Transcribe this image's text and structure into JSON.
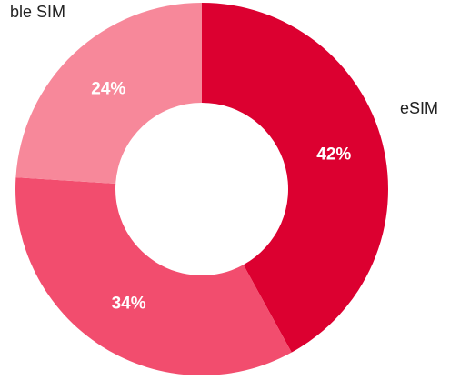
{
  "chart_data": {
    "type": "donut",
    "categories": [
      "eSIM",
      null,
      "ble SIM"
    ],
    "values": [
      42,
      34,
      24
    ],
    "value_labels": [
      "42%",
      "34%",
      "24%"
    ],
    "colors": [
      "#dc0030",
      "#f24d6e",
      "#f7889a"
    ]
  }
}
